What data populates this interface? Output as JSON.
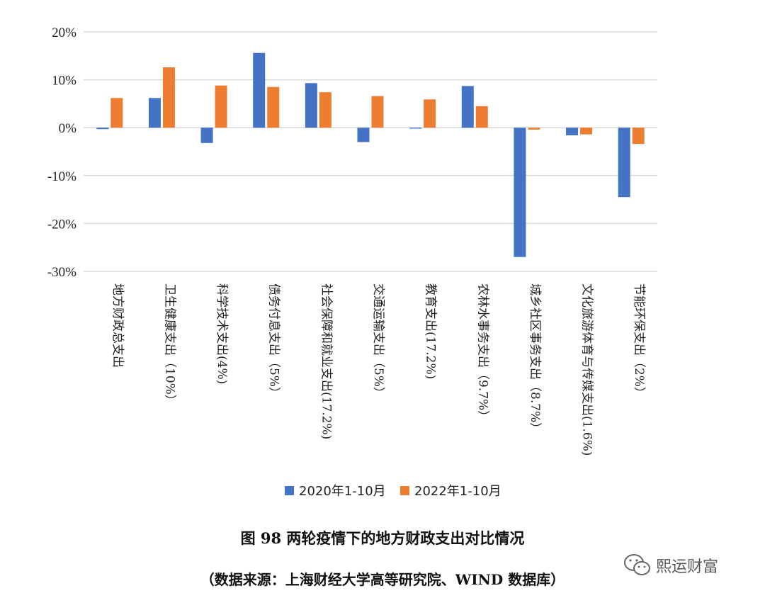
{
  "chart_data": {
    "type": "bar",
    "categories": [
      "地方财政总支出",
      "卫生健康支出（10%）",
      "科学技术支出(4%)",
      "债务付息支出（5%）",
      "社会保障和就业支出(17.2%)",
      "交通运输支出（5%）",
      "教育支出(17.2%)",
      "农林水事务支出（9.7%）",
      "城乡社区事务支出（8.7%）",
      "文化旅游体育与传媒支出(1.6%)",
      "节能环保支出（2%）"
    ],
    "series": [
      {
        "name": "2020年1-10月",
        "color": "#4472C4",
        "values": [
          -0.3,
          6.2,
          -3.2,
          15.6,
          9.3,
          -3.0,
          -0.2,
          8.7,
          -27.0,
          -1.6,
          -14.5
        ]
      },
      {
        "name": "2022年1-10月",
        "color": "#ED7D31",
        "values": [
          6.2,
          12.6,
          8.8,
          8.5,
          7.4,
          6.6,
          5.9,
          4.5,
          -0.4,
          -1.4,
          -3.4
        ]
      }
    ],
    "y_ticks": [
      "20%",
      "10%",
      "0%",
      "-10%",
      "-20%",
      "-30%"
    ],
    "ylim": [
      -30,
      20
    ],
    "legend_position": "bottom",
    "grid": true
  },
  "caption": {
    "title": "图 98 两轮疫情下的地方财政支出对比情况",
    "source": "（数据来源：上海财经大学高等研究院、WIND 数据库）"
  },
  "watermark": {
    "text": "熙运财富",
    "icon": "wechat-icon"
  }
}
